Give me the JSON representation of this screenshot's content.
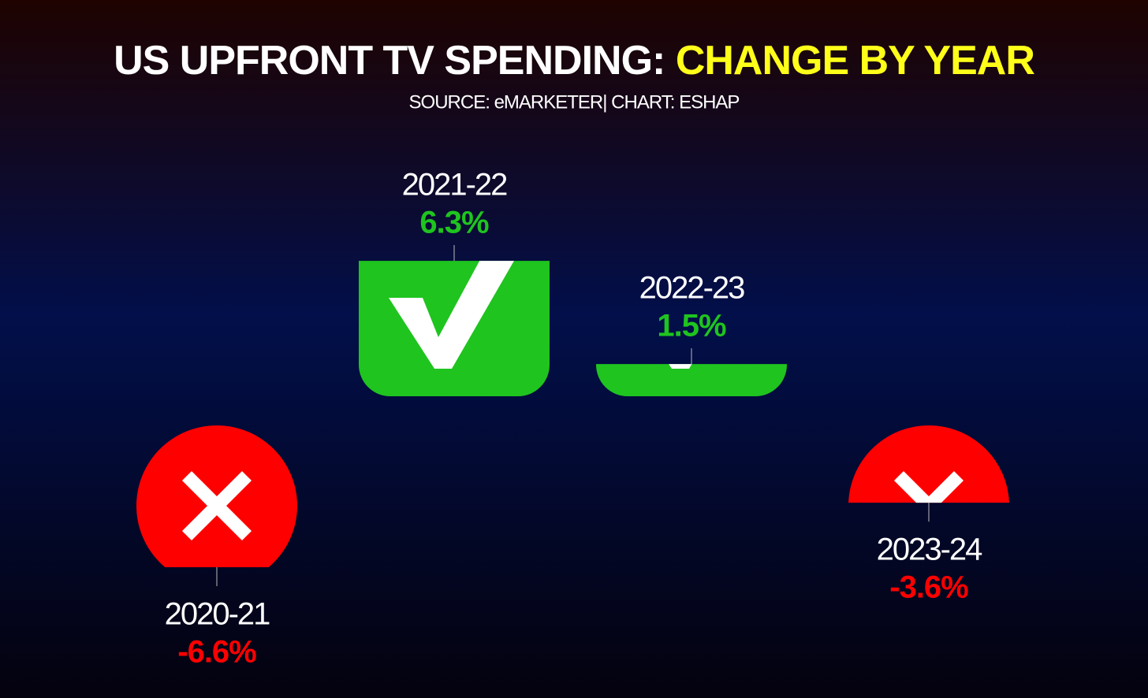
{
  "chart_data": {
    "type": "bar",
    "title": "US UPFRONT TV SPENDING:",
    "title_highlight": "CHANGE BY YEAR",
    "subtitle": "SOURCE: eMARKETER|  CHART: ESHAP",
    "categories": [
      "2020-21",
      "2021-22",
      "2022-23",
      "2023-24"
    ],
    "values": [
      -6.6,
      6.3,
      1.5,
      -3.6
    ],
    "value_labels": [
      "-6.6%",
      "6.3%",
      "1.5%",
      "-3.6%"
    ],
    "positive_color": "#1fc41f",
    "negative_color": "#ff0000"
  }
}
